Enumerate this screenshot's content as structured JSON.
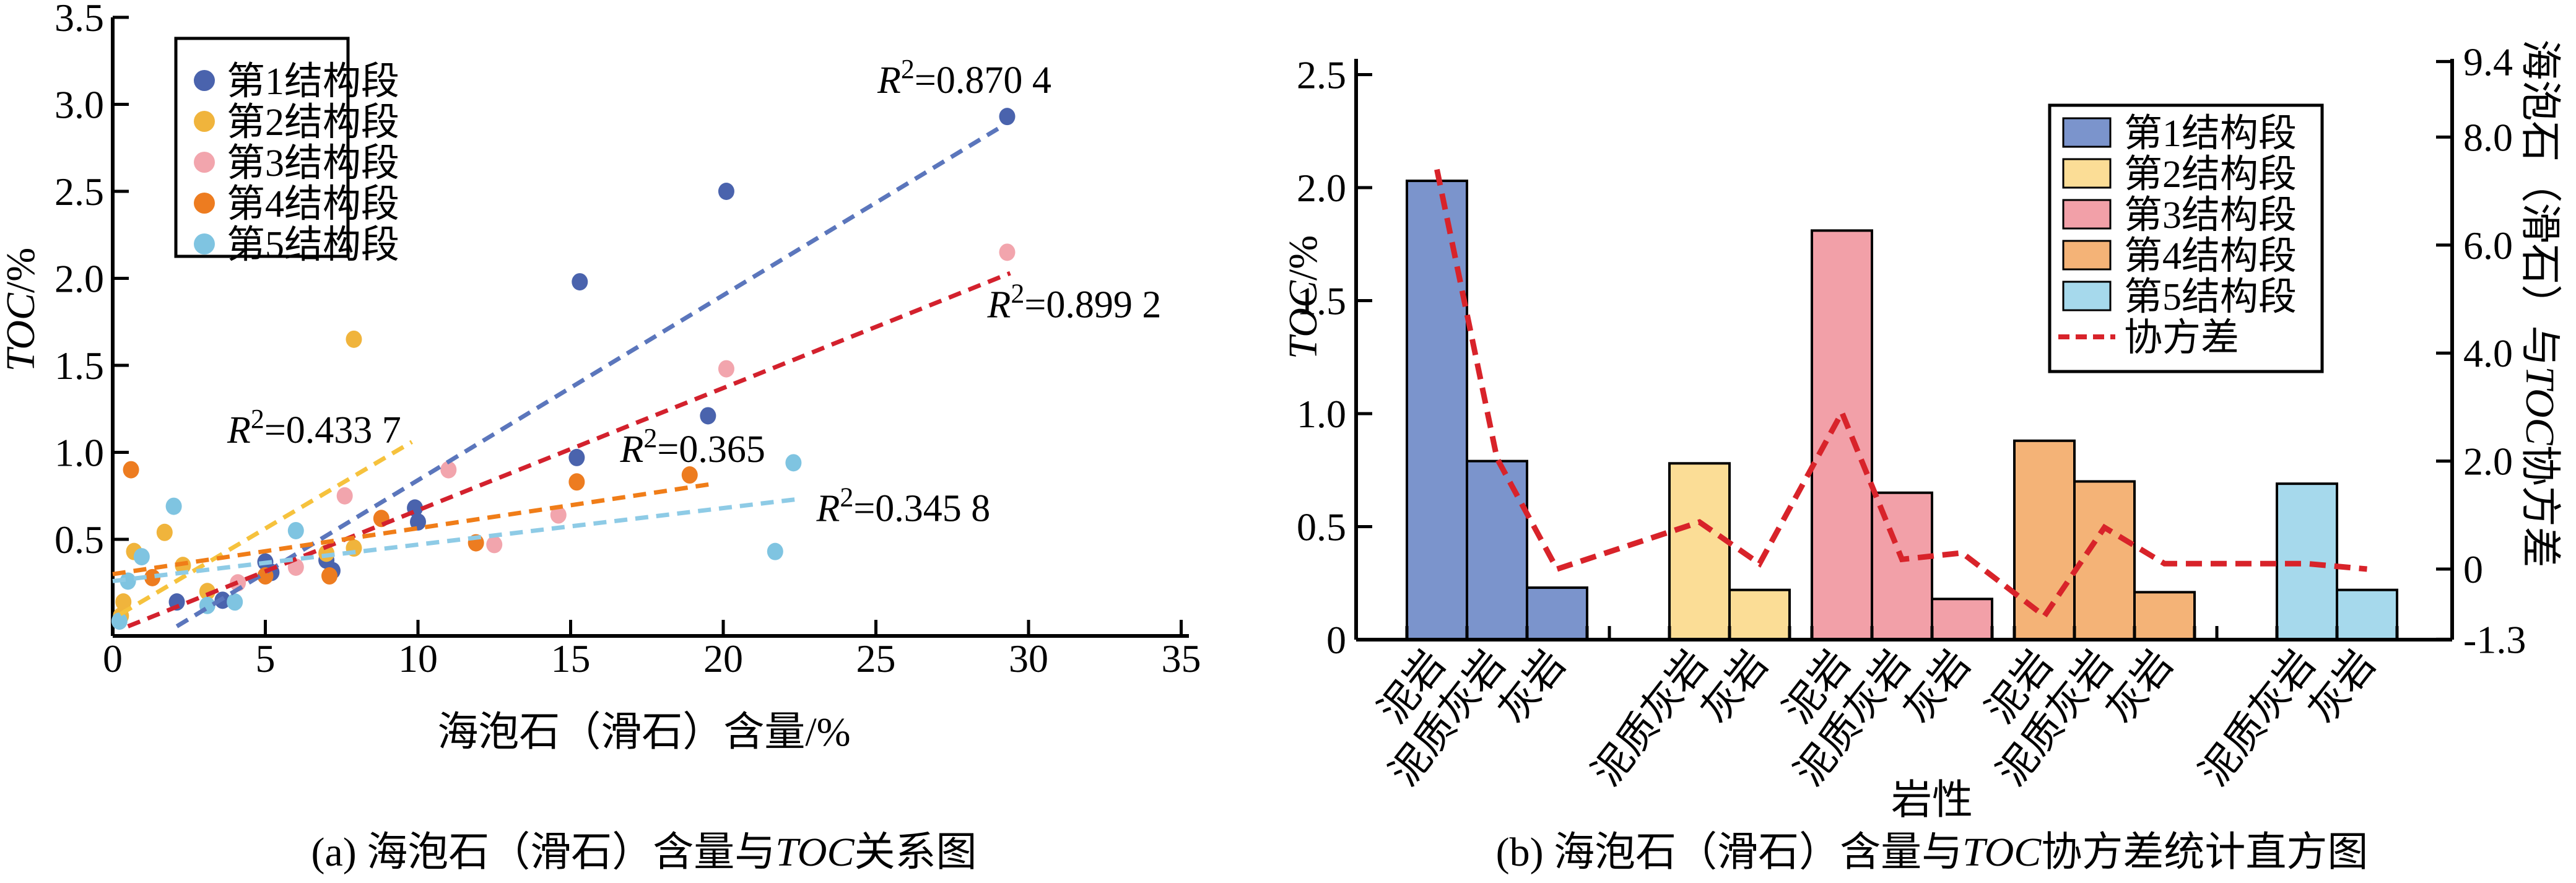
{
  "figure": {
    "background": "#ffffff",
    "captions": {
      "a_prefix": "(a) 海泡石（滑石）含量与",
      "a_italic": "TOC",
      "a_suffix": "关系图",
      "b_prefix": "(b) 海泡石（滑石）含量与",
      "b_italic": "TOC",
      "b_suffix": "协方差统计直方图"
    },
    "axes_titles": {
      "a_xlabel": "海泡石（滑石）含量/%",
      "a_ylabel_italic": "TOC",
      "a_ylabel_rest": "/%",
      "b_left_ylabel_italic": "TOC",
      "b_left_ylabel_rest": "/%",
      "b_right_prefix": "海泡石（滑石）与",
      "b_right_italic": "TOC",
      "b_right_suffix": "协方差",
      "b_xlabel": "岩性"
    }
  },
  "chart_data": [
    {
      "type": "scatter",
      "panel": "a",
      "title": "",
      "xlabel": "海泡石（滑石）含量/%",
      "ylabel": "TOC/%",
      "xlim": [
        0,
        35.6
      ],
      "ylim": [
        -0.055,
        3.5
      ],
      "xticks": [
        "0",
        "5",
        "10",
        "15",
        "20",
        "25",
        "30",
        "35"
      ],
      "ytick_values": [
        0.5,
        1.0,
        1.5,
        2.0,
        2.5,
        3.0,
        3.5
      ],
      "ytick_labels": [
        "0.5",
        "1.0",
        "1.5",
        "2.0",
        "2.5",
        "3.0",
        "3.5"
      ],
      "xtick_values": [
        0,
        5,
        10,
        15,
        20,
        25,
        30,
        35
      ],
      "grid": false,
      "legend_position": "upper-left",
      "series": [
        {
          "name": "第1结构段",
          "marker_color": "#4a63ad",
          "trend_color": "#5b76bc",
          "points": [
            [
              2.1,
              0.14
            ],
            [
              3.6,
              0.15
            ],
            [
              5.0,
              0.37
            ],
            [
              5.2,
              0.31
            ],
            [
              7.0,
              0.38
            ],
            [
              7.2,
              0.32
            ],
            [
              9.9,
              0.68
            ],
            [
              10.0,
              0.6
            ],
            [
              15.2,
              0.97
            ],
            [
              15.3,
              1.98
            ],
            [
              19.5,
              1.21
            ],
            [
              20.1,
              2.5
            ],
            [
              29.3,
              2.93
            ]
          ],
          "trend": [
            [
              2.1,
              0.0
            ],
            [
              29.0,
              2.86
            ]
          ],
          "r2": "0.870 4",
          "r2_pos": [
            27.9,
            3.14
          ]
        },
        {
          "name": "第2结构段",
          "marker_color": "#f0b43c",
          "trend_color": "#f6c23d",
          "points": [
            [
              0.27,
              0.06
            ],
            [
              0.35,
              0.14
            ],
            [
              0.7,
              0.43
            ],
            [
              1.7,
              0.54
            ],
            [
              2.3,
              0.35
            ],
            [
              3.1,
              0.2
            ],
            [
              7.0,
              0.42
            ],
            [
              7.9,
              0.45
            ],
            [
              7.9,
              1.65
            ]
          ],
          "trend": [
            [
              0.25,
              0.07
            ],
            [
              9.8,
              1.06
            ]
          ],
          "r2": "0.433 7",
          "r2_pos": [
            6.6,
            1.13
          ]
        },
        {
          "name": "第3结构段",
          "marker_color": "#f2a5ad",
          "trend_color": "#d3212d",
          "points": [
            [
              4.1,
              0.25
            ],
            [
              6.0,
              0.34
            ],
            [
              7.6,
              0.75
            ],
            [
              11.0,
              0.9
            ],
            [
              12.5,
              0.47
            ],
            [
              14.6,
              0.64
            ],
            [
              20.1,
              1.48
            ],
            [
              29.3,
              2.15
            ]
          ],
          "trend": [
            [
              0.5,
              0.0
            ],
            [
              29.4,
              2.03
            ]
          ],
          "r2": "0.899 2",
          "r2_pos": [
            31.5,
            1.85
          ]
        },
        {
          "name": "第4结构段",
          "marker_color": "#ed7c20",
          "trend_color": "#f07d18",
          "points": [
            [
              0.6,
              0.9
            ],
            [
              1.3,
              0.28
            ],
            [
              5.0,
              0.29
            ],
            [
              7.1,
              0.29
            ],
            [
              8.8,
              0.62
            ],
            [
              11.9,
              0.48
            ],
            [
              15.2,
              0.83
            ],
            [
              18.9,
              0.87
            ]
          ],
          "trend": [
            [
              0.0,
              0.3
            ],
            [
              19.7,
              0.82
            ]
          ],
          "r2": "0.365",
          "r2_pos": [
            19.0,
            1.02
          ]
        },
        {
          "name": "第5结构段",
          "marker_color": "#7fc4e1",
          "trend_color": "#8ecbe6",
          "points": [
            [
              0.22,
              0.03
            ],
            [
              0.5,
              0.26
            ],
            [
              0.95,
              0.4
            ],
            [
              2.0,
              0.69
            ],
            [
              3.1,
              0.12
            ],
            [
              4.0,
              0.14
            ],
            [
              6.0,
              0.55
            ],
            [
              21.7,
              0.43
            ],
            [
              22.3,
              0.94
            ]
          ],
          "trend": [
            [
              0.0,
              0.26
            ],
            [
              22.4,
              0.73
            ]
          ],
          "r2": "0.345 8",
          "r2_pos": [
            25.9,
            0.68
          ]
        }
      ]
    },
    {
      "type": "bar",
      "panel": "b",
      "xlabel": "岩性",
      "ylabel_left": "TOC/%",
      "ylabel_right": "海泡石（滑石）与TOC协方差",
      "ylim_left": [
        0,
        2.57
      ],
      "ylim_right": [
        -1.3,
        9.4
      ],
      "ytick_left_values": [
        0,
        0.5,
        1.0,
        1.5,
        2.0,
        2.5
      ],
      "ytick_left_labels": [
        "0",
        "0.5",
        "1.0",
        "1.5",
        "2.0",
        "2.5"
      ],
      "ytick_right_values": [
        9.4,
        8.0,
        6.0,
        4.0,
        2.0,
        0,
        -1.3
      ],
      "ytick_right_labels": [
        "9.4",
        "8.0",
        "6.0",
        "4.0",
        "2.0",
        "0",
        "-1.3"
      ],
      "covariance_label": "协方差",
      "covariance_color": "#d8232a",
      "bar_border_color": "#000000",
      "groups": [
        {
          "name": "第1结构段",
          "color": "#7b94cc",
          "skip_first_slot": false,
          "bars": [
            {
              "lith": "泥岩",
              "toc": 2.03,
              "cov": 7.4
            },
            {
              "lith": "泥质灰岩",
              "toc": 0.79,
              "cov": 2.05
            },
            {
              "lith": "灰岩",
              "toc": 0.23,
              "cov": 0.0
            }
          ]
        },
        {
          "name": "第2结构段",
          "color": "#fbdd96",
          "skip_first_slot": true,
          "bars": [
            {
              "lith": "泥质灰岩",
              "toc": 0.78,
              "cov": 0.87
            },
            {
              "lith": "灰岩",
              "toc": 0.22,
              "cov": 0.1
            }
          ]
        },
        {
          "name": "第3结构段",
          "color": "#f2a0a8",
          "skip_first_slot": false,
          "bars": [
            {
              "lith": "泥岩",
              "toc": 1.81,
              "cov": 2.9
            },
            {
              "lith": "泥质灰岩",
              "toc": 0.65,
              "cov": 0.18
            },
            {
              "lith": "灰岩",
              "toc": 0.18,
              "cov": 0.3
            }
          ]
        },
        {
          "name": "第4结构段",
          "color": "#f4b377",
          "skip_first_slot": false,
          "bars": [
            {
              "lith": "泥岩",
              "toc": 0.88,
              "cov": -0.87
            },
            {
              "lith": "泥质灰岩",
              "toc": 0.7,
              "cov": 0.77
            },
            {
              "lith": "灰岩",
              "toc": 0.21,
              "cov": 0.1
            }
          ]
        },
        {
          "name": "第5结构段",
          "color": "#a6d9ec",
          "skip_first_slot": true,
          "bars": [
            {
              "lith": "泥质灰岩",
              "toc": 0.69,
              "cov": 0.1
            },
            {
              "lith": "灰岩",
              "toc": 0.22,
              "cov": 0.0
            }
          ]
        }
      ]
    }
  ]
}
